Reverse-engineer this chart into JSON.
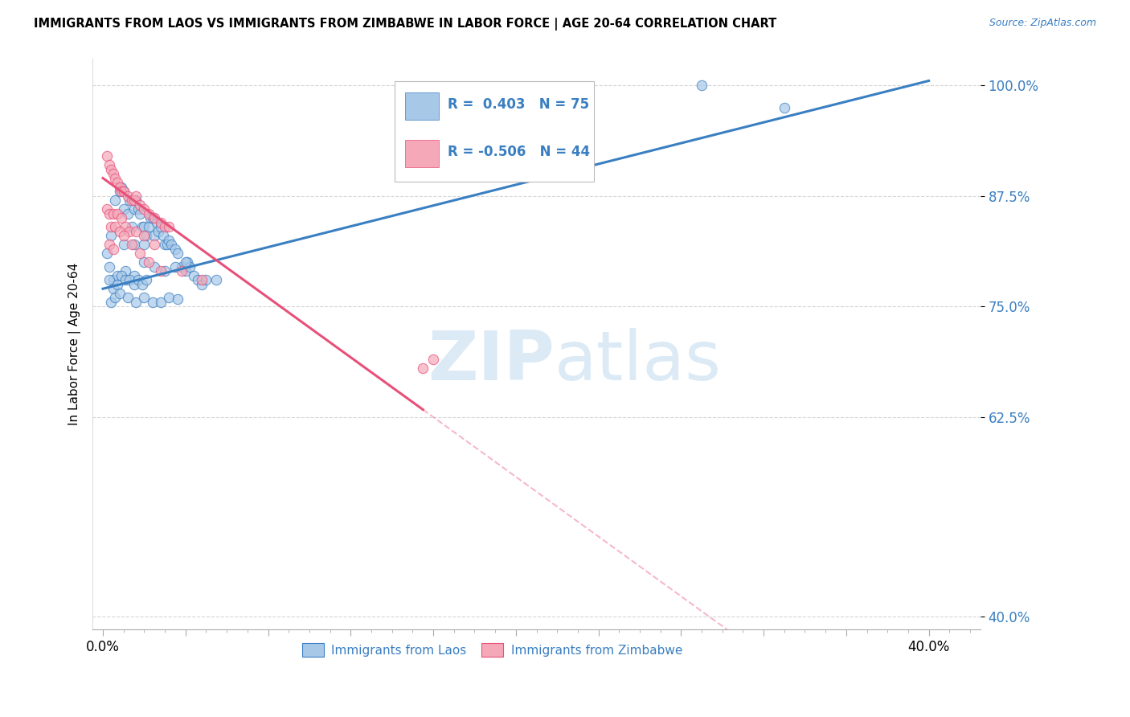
{
  "title": "IMMIGRANTS FROM LAOS VS IMMIGRANTS FROM ZIMBABWE IN LABOR FORCE | AGE 20-64 CORRELATION CHART",
  "source": "Source: ZipAtlas.com",
  "ylabel": "In Labor Force | Age 20-64",
  "r_laos": 0.403,
  "n_laos": 75,
  "r_zimbabwe": -0.506,
  "n_zimbabwe": 44,
  "color_laos": "#a8c8e8",
  "color_zimbabwe": "#f4a8b8",
  "line_color_laos": "#3a7fc1",
  "line_color_zimbabwe": "#e8507a",
  "legend_label_laos": "Immigrants from Laos",
  "legend_label_zimbabwe": "Immigrants from Zimbabwe",
  "xlim": [
    -0.005,
    0.425
  ],
  "ylim": [
    0.385,
    1.03
  ],
  "yticks": [
    0.4,
    0.625,
    0.75,
    0.875,
    1.0
  ],
  "ytick_labels": [
    "40.0%",
    "62.5%",
    "75.0%",
    "87.5%",
    "100.0%"
  ],
  "laos_x": [
    0.002,
    0.004,
    0.006,
    0.008,
    0.009,
    0.01,
    0.01,
    0.012,
    0.013,
    0.014,
    0.015,
    0.016,
    0.017,
    0.018,
    0.019,
    0.02,
    0.021,
    0.022,
    0.023,
    0.024,
    0.025,
    0.026,
    0.027,
    0.028,
    0.029,
    0.03,
    0.031,
    0.032,
    0.033,
    0.035,
    0.036,
    0.038,
    0.04,
    0.041,
    0.042,
    0.044,
    0.046,
    0.048,
    0.05,
    0.055,
    0.003,
    0.005,
    0.007,
    0.011,
    0.015,
    0.02,
    0.025,
    0.03,
    0.035,
    0.04,
    0.003,
    0.005,
    0.007,
    0.009,
    0.011,
    0.013,
    0.015,
    0.017,
    0.019,
    0.021,
    0.004,
    0.006,
    0.008,
    0.012,
    0.016,
    0.02,
    0.024,
    0.028,
    0.032,
    0.036,
    0.01,
    0.015,
    0.02,
    0.29,
    0.33
  ],
  "laos_y": [
    0.81,
    0.83,
    0.87,
    0.88,
    0.885,
    0.86,
    0.88,
    0.855,
    0.87,
    0.84,
    0.86,
    0.87,
    0.86,
    0.855,
    0.84,
    0.84,
    0.83,
    0.84,
    0.85,
    0.85,
    0.83,
    0.845,
    0.835,
    0.84,
    0.83,
    0.82,
    0.82,
    0.825,
    0.82,
    0.815,
    0.81,
    0.795,
    0.79,
    0.8,
    0.795,
    0.785,
    0.78,
    0.775,
    0.78,
    0.78,
    0.795,
    0.78,
    0.785,
    0.79,
    0.785,
    0.8,
    0.795,
    0.79,
    0.795,
    0.8,
    0.78,
    0.77,
    0.775,
    0.785,
    0.78,
    0.78,
    0.775,
    0.78,
    0.775,
    0.78,
    0.755,
    0.76,
    0.765,
    0.76,
    0.755,
    0.76,
    0.755,
    0.755,
    0.76,
    0.758,
    0.82,
    0.82,
    0.82,
    1.0,
    0.975
  ],
  "zimbabwe_x": [
    0.002,
    0.003,
    0.004,
    0.005,
    0.006,
    0.007,
    0.008,
    0.009,
    0.01,
    0.012,
    0.014,
    0.015,
    0.016,
    0.018,
    0.02,
    0.022,
    0.025,
    0.028,
    0.03,
    0.032,
    0.002,
    0.003,
    0.005,
    0.007,
    0.009,
    0.011,
    0.013,
    0.016,
    0.02,
    0.025,
    0.004,
    0.006,
    0.008,
    0.01,
    0.014,
    0.018,
    0.022,
    0.028,
    0.038,
    0.048,
    0.003,
    0.005,
    0.155,
    0.16
  ],
  "zimbabwe_y": [
    0.92,
    0.91,
    0.905,
    0.9,
    0.895,
    0.89,
    0.885,
    0.88,
    0.88,
    0.875,
    0.87,
    0.87,
    0.875,
    0.865,
    0.86,
    0.855,
    0.85,
    0.845,
    0.84,
    0.84,
    0.86,
    0.855,
    0.855,
    0.855,
    0.85,
    0.84,
    0.835,
    0.835,
    0.83,
    0.82,
    0.84,
    0.84,
    0.835,
    0.83,
    0.82,
    0.81,
    0.8,
    0.79,
    0.79,
    0.78,
    0.82,
    0.815,
    0.68,
    0.69
  ],
  "watermark_zip": "ZIP",
  "watermark_atlas": "atlas",
  "background_color": "#ffffff",
  "grid_color": "#cccccc",
  "xtick_left_label": "0.0%",
  "xtick_right_label": "40.0%"
}
